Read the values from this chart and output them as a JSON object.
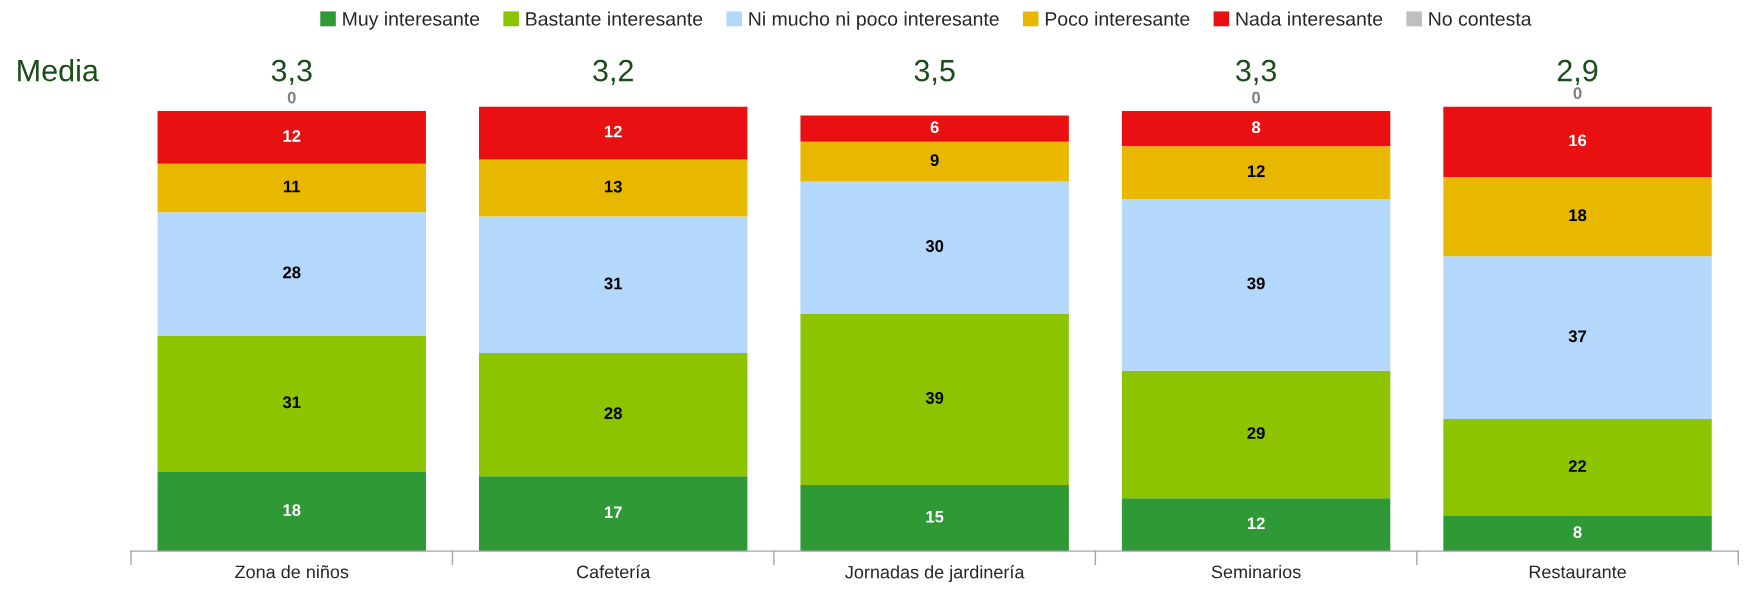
{
  "chart_data": {
    "type": "bar",
    "stacked": true,
    "data_labels": true,
    "legend": "top",
    "grid": false,
    "categories": [
      "Zona de niños",
      "Cafetería",
      "Jornadas de jardinería",
      "Seminarios",
      "Restaurante"
    ],
    "series": [
      {
        "name": "Muy interesante",
        "color": "#2f9a35",
        "values": [
          18,
          17,
          15,
          12,
          8
        ]
      },
      {
        "name": "Bastante interesante",
        "color": "#8cc400",
        "values": [
          31,
          28,
          39,
          29,
          22
        ]
      },
      {
        "name": "Ni mucho ni poco interesante",
        "color": "#b4d8fc",
        "values": [
          28,
          31,
          30,
          39,
          37
        ]
      },
      {
        "name": "Poco interesante",
        "color": "#e8b800",
        "values": [
          11,
          13,
          9,
          12,
          18
        ]
      },
      {
        "name": "Nada interesante",
        "color": "#e81010",
        "values": [
          12,
          12,
          6,
          8,
          16
        ]
      },
      {
        "name": "No contesta",
        "color": "#bfbfbf",
        "values": [
          0,
          null,
          null,
          0,
          0
        ]
      }
    ],
    "annotations": [
      "Media",
      "3,3",
      "3,2",
      "3,5",
      "3,3",
      "2,9"
    ]
  }
}
